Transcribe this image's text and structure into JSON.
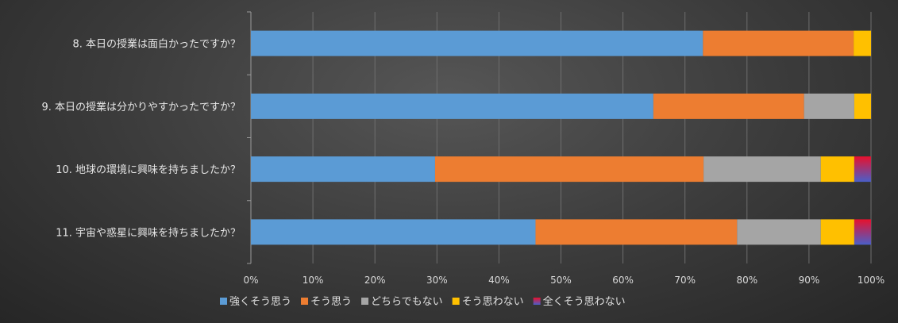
{
  "chart_data": {
    "type": "bar",
    "orientation": "horizontal",
    "stacked": "percent",
    "categories": [
      "8. 本日の授業は面白かったですか？",
      "9. 本日の授業は分かりやすかったですか？",
      "10. 地球の環境に興味を持ちましたか？",
      "11. 宇宙や惑星に興味を持ちましたか？"
    ],
    "series": [
      {
        "name": "強くそう思う",
        "color": "#5b9bd5",
        "values": [
          72.9,
          64.9,
          29.7,
          45.9
        ]
      },
      {
        "name": "そう思う",
        "color": "#ed7d31",
        "values": [
          24.3,
          24.3,
          43.3,
          32.5
        ]
      },
      {
        "name": "どちらでもない",
        "color": "#a5a5a5",
        "values": [
          0,
          8.1,
          18.9,
          13.5
        ]
      },
      {
        "name": "そう思わない",
        "color": "#ffc000",
        "values": [
          2.8,
          2.7,
          5.4,
          5.4
        ]
      },
      {
        "name": "全くそう思わない",
        "color": "#c00000",
        "gradient": [
          "#e8112d",
          "#4a5fc9"
        ],
        "values": [
          0,
          0,
          2.7,
          2.7
        ]
      }
    ],
    "xlim": [
      0,
      100
    ],
    "xticks": [
      "0%",
      "10%",
      "20%",
      "30%",
      "40%",
      "50%",
      "60%",
      "70%",
      "80%",
      "90%",
      "100%"
    ],
    "legend_position": "bottom-left",
    "grid": true
  }
}
